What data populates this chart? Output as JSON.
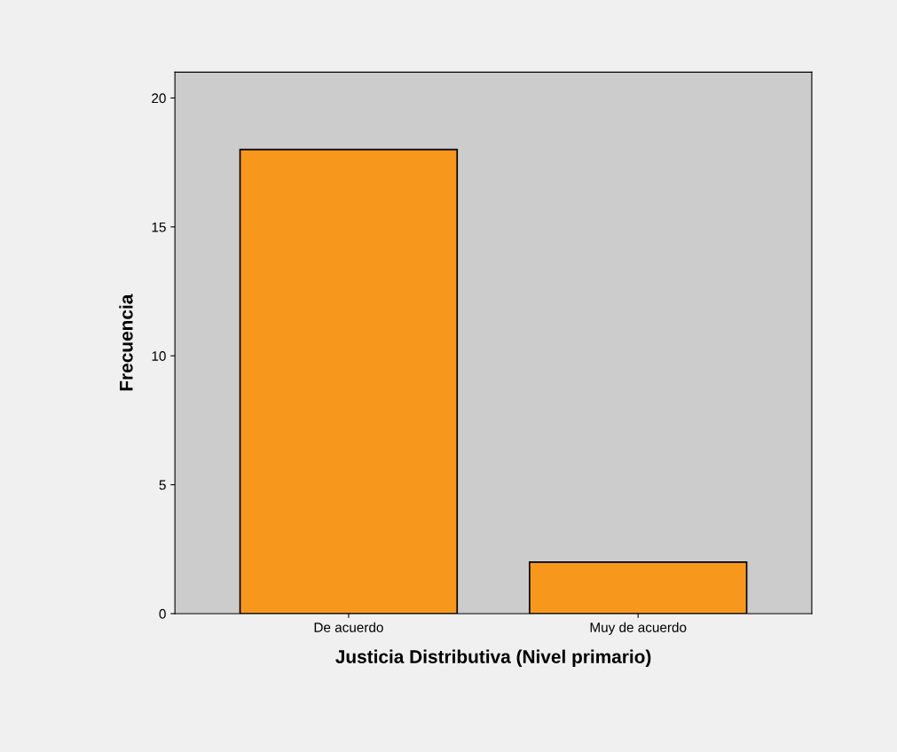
{
  "chart_data": {
    "type": "bar",
    "xlabel": "Justicia Distributiva (Nivel primario)",
    "ylabel": "Frecuencia",
    "categories": [
      "De acuerdo",
      "Muy de acuerdo"
    ],
    "values": [
      18,
      2
    ],
    "color": "#f7981d",
    "ylim": [
      0,
      21
    ],
    "yticks": [
      0,
      5,
      10,
      15,
      20
    ],
    "grid": false,
    "legend": false
  }
}
